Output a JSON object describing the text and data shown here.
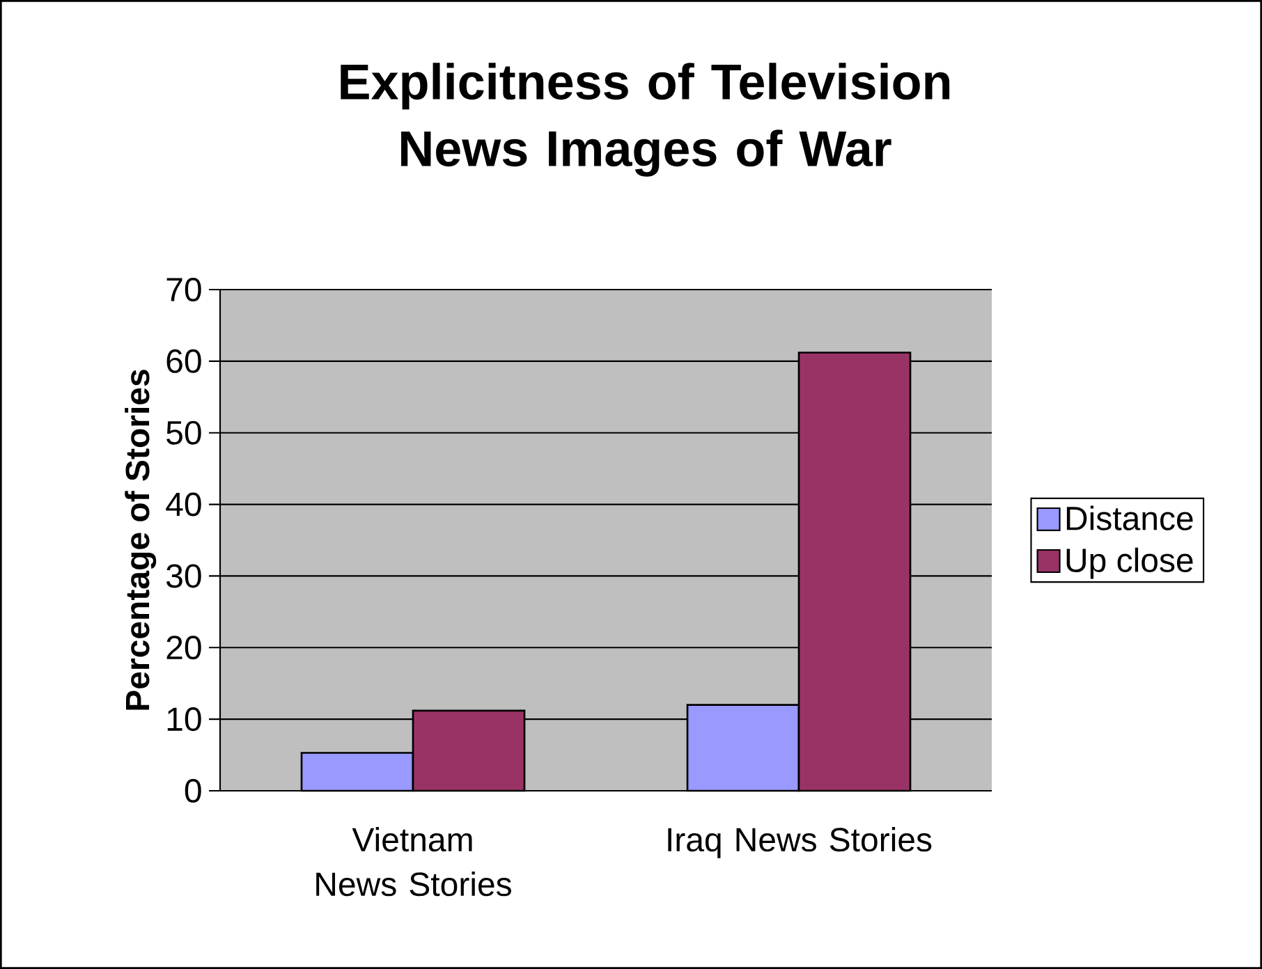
{
  "chart_data": {
    "type": "bar",
    "title": "Explicitness of Television News Images of War",
    "ylabel": "Percentage of Stories",
    "categories": [
      "Vietnam News Stories",
      "Iraq News Stories"
    ],
    "series": [
      {
        "name": "Distance",
        "color": "#9999ff",
        "values": [
          5.3,
          12
        ]
      },
      {
        "name": "Up close",
        "color": "#993366",
        "values": [
          11.2,
          61.2
        ]
      }
    ],
    "ylim": [
      0,
      70
    ],
    "yticks": [
      0,
      10,
      20,
      30,
      40,
      50,
      60,
      70
    ],
    "grid": "y",
    "legend": "right"
  }
}
